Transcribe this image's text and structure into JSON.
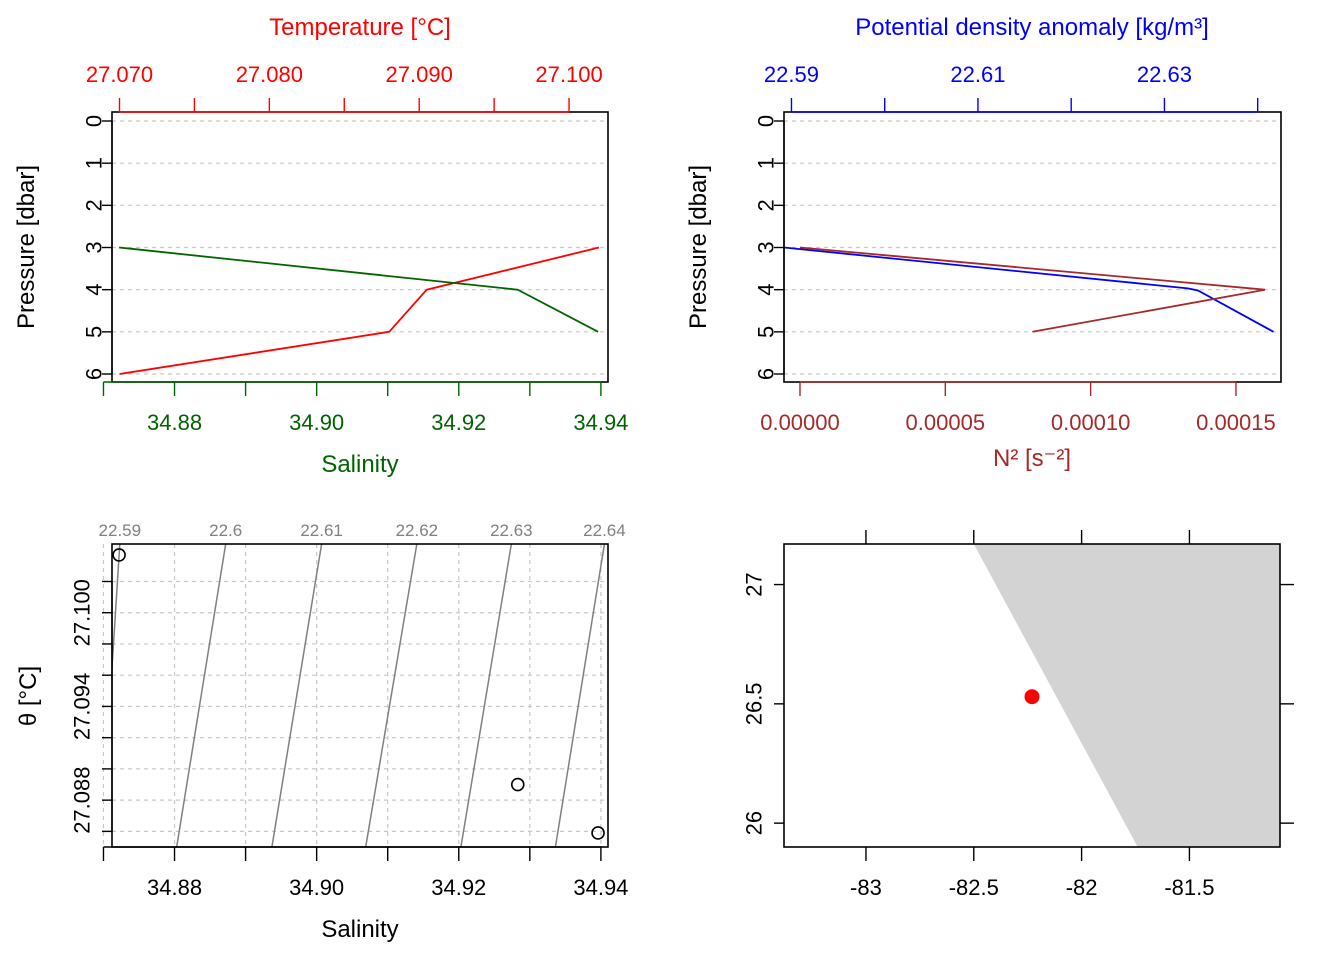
{
  "chart_data": [
    {
      "id": "profile-ts",
      "type": "line",
      "ylabel": "Pressure [dbar]",
      "ylim": [
        0,
        6
      ],
      "y_ticks": [
        "0",
        "1",
        "2",
        "3",
        "4",
        "5",
        "6"
      ],
      "y_reversed": true,
      "grid": true,
      "top_axis": {
        "label": "Temperature [°C]",
        "color": "#ff0000",
        "range": [
          27.0695,
          27.1026
        ],
        "ticks": [
          "27.070",
          "27.075",
          "27.080",
          "27.085",
          "27.090",
          "27.095",
          "27.100"
        ],
        "tick_labels": [
          "27.070",
          "",
          "27.080",
          "",
          "27.090",
          "",
          "27.100"
        ]
      },
      "bottom_axis": {
        "label": "Salinity",
        "color": "#006400",
        "range": [
          34.8712,
          34.941
        ],
        "ticks": [
          "34.87",
          "34.88",
          "34.89",
          "34.90",
          "34.91",
          "34.92",
          "34.93",
          "34.94"
        ],
        "tick_labels": [
          "",
          "34.88",
          "",
          "34.90",
          "",
          "34.92",
          "",
          "34.94"
        ]
      },
      "series": [
        {
          "color": "#ff0000",
          "x_axis": "top",
          "x": [
            27.102,
            27.0905,
            27.088,
            27.07
          ],
          "y": [
            3,
            4,
            5,
            6
          ]
        },
        {
          "color": "#006400",
          "x_axis": "bottom",
          "x": [
            34.8722,
            34.9283,
            34.9396
          ],
          "y": [
            3,
            4,
            5
          ]
        }
      ]
    },
    {
      "id": "profile-density",
      "type": "line",
      "ylabel": "Pressure [dbar]",
      "ylim": [
        0,
        6
      ],
      "y_ticks": [
        "0",
        "1",
        "2",
        "3",
        "4",
        "5",
        "6"
      ],
      "y_reversed": true,
      "grid": true,
      "top_axis": {
        "label": "Potential density anomaly [kg/m³]",
        "color": "#0000ff",
        "range": [
          22.5892,
          22.6425
        ],
        "ticks": [
          "22.59",
          "22.60",
          "22.61",
          "22.62",
          "22.63",
          "22.64"
        ],
        "tick_labels": [
          "22.59",
          "",
          "22.61",
          "",
          "22.63",
          ""
        ]
      },
      "bottom_axis": {
        "label": "N² [s⁻²]",
        "color": "#a52a2a",
        "range": [
          -5.5e-06,
          0.0001655
        ],
        "ticks": [
          "0.00000",
          "0.00005",
          "0.00010",
          "0.00015"
        ],
        "tick_labels": [
          "0.00000",
          "0.00005",
          "0.00010",
          "0.00015"
        ]
      },
      "series": [
        {
          "color": "#0000ff",
          "x_axis": "top",
          "x": [
            22.5892,
            22.6325,
            22.6336,
            22.6417
          ],
          "y": [
            3,
            3.97,
            4.02,
            5
          ]
        },
        {
          "color": "#a52a2a",
          "x_axis": "bottom",
          "x": [
            0.0,
            0.00016,
            8e-05
          ],
          "y": [
            3,
            4,
            5
          ]
        }
      ]
    },
    {
      "id": "ts-diagram",
      "type": "scatter",
      "xlabel": "Salinity",
      "ylabel": "θ [°C]",
      "xlim": [
        34.8712,
        34.941
      ],
      "ylim": [
        27.085,
        27.1044
      ],
      "x_ticks": [
        "34.87",
        "34.88",
        "34.89",
        "34.90",
        "34.91",
        "34.92",
        "34.93",
        "34.94"
      ],
      "x_tick_labels": [
        "",
        "34.88",
        "",
        "34.90",
        "",
        "34.92",
        "",
        "34.94"
      ],
      "y_ticks": [
        "27.086",
        "27.088",
        "27.090",
        "27.092",
        "27.094",
        "27.096",
        "27.098",
        "27.100",
        "27.102"
      ],
      "y_tick_labels": [
        "",
        "27.088",
        "",
        "",
        "27.094",
        "",
        "",
        "27.100",
        ""
      ],
      "grid": true,
      "points": [
        {
          "x": 34.8722,
          "y": 27.1037
        },
        {
          "x": 34.9283,
          "y": 27.089
        },
        {
          "x": 34.9396,
          "y": 27.0859
        }
      ],
      "isopycnal_color": "#808080",
      "isopycnals": [
        {
          "label": "22.59",
          "x": [
            34.8696,
            34.8723
          ]
        },
        {
          "label": "22.6",
          "x": [
            34.8803,
            34.8872
          ]
        },
        {
          "label": "22.61",
          "x": [
            34.8937,
            34.9007
          ]
        },
        {
          "label": "22.62",
          "x": [
            34.9069,
            34.9141
          ]
        },
        {
          "label": "22.63",
          "x": [
            34.9203,
            34.9274
          ]
        },
        {
          "label": "22.64",
          "x": [
            34.9336,
            34.9405
          ]
        }
      ]
    },
    {
      "id": "station-map",
      "type": "scatter",
      "xlim": [
        -83.38,
        -81.08
      ],
      "ylim": [
        25.9,
        27.17
      ],
      "x_ticks": [
        "-83",
        "-82.5",
        "-82",
        "-81.5"
      ],
      "y_ticks": [
        "26",
        "26.5",
        "27"
      ],
      "land_color": "#d3d3d3",
      "land_polygon": [
        [
          -82.5,
          27.17
        ],
        [
          -81.08,
          27.17
        ],
        [
          -81.08,
          25.9
        ],
        [
          -81.74,
          25.9
        ]
      ],
      "station": {
        "x": -82.23,
        "y": 26.53,
        "color": "#ff0000"
      }
    }
  ]
}
